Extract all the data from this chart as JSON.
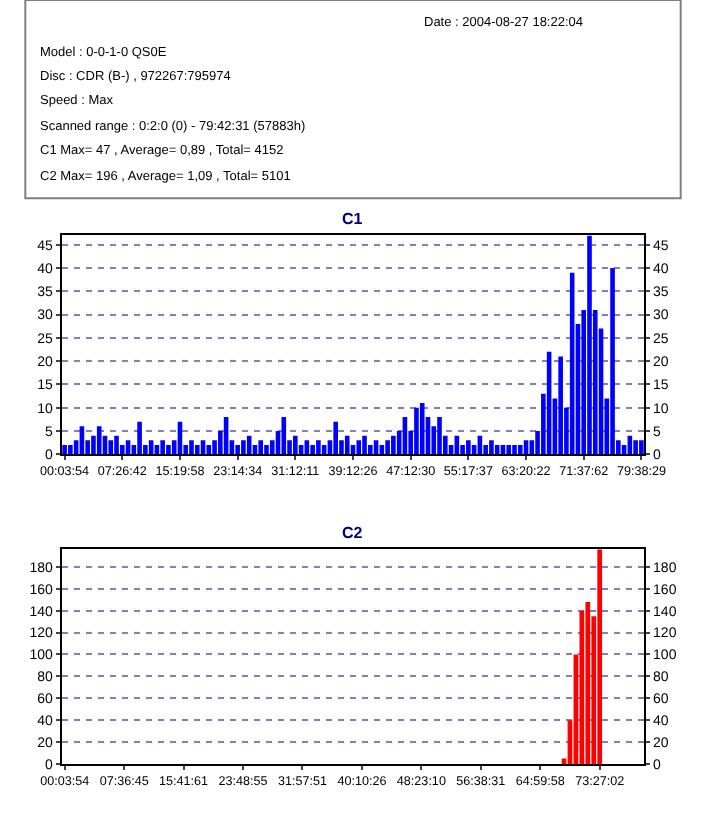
{
  "chart_data": [
    {
      "type": "other",
      "annotations": [
        "Date : 2004-08-27 18:22:04",
        "Model : 0-0-1-0 QS0E",
        "Disc : CDR (B-) , 972267:795974",
        "Speed : Max",
        "Scanned range : 0:2:0 (0) - 79:42:31 (57883h)",
        "C1 Max= 47 , Average= 0,89 , Total= 4152",
        "C2 Max= 196 , Average= 1,09 , Total= 5101"
      ]
    },
    {
      "type": "bar",
      "title": "C1",
      "grid": "y",
      "line_style": "dotted",
      "ylim": [
        0,
        47
      ],
      "y2lim": [
        0,
        47
      ],
      "categories": [
        "00:03:54",
        null,
        null,
        null,
        null,
        null,
        null,
        null,
        null,
        null,
        "07:26:42",
        null,
        null,
        null,
        null,
        null,
        null,
        null,
        null,
        null,
        "15:19:58",
        null,
        null,
        null,
        null,
        null,
        null,
        null,
        null,
        null,
        "23:14:34",
        null,
        null,
        null,
        null,
        null,
        null,
        null,
        null,
        null,
        "31:12:11",
        null,
        null,
        null,
        null,
        null,
        null,
        null,
        null,
        null,
        "39:12:26",
        null,
        null,
        null,
        null,
        null,
        null,
        null,
        null,
        null,
        "47:12:30",
        null,
        null,
        null,
        null,
        null,
        null,
        null,
        null,
        null,
        "55:17:37",
        null,
        null,
        null,
        null,
        null,
        null,
        null,
        null,
        null,
        "63:20:22",
        null,
        null,
        null,
        null,
        null,
        null,
        null,
        null,
        null,
        "71:37:62",
        null,
        null,
        null,
        null,
        null,
        null,
        null,
        null,
        null,
        "79:38:29"
      ],
      "yticks": [
        0,
        5,
        10,
        15,
        20,
        25,
        30,
        35,
        40,
        45
      ],
      "y2ticks": [
        0,
        5,
        10,
        15,
        20,
        25,
        30,
        35,
        40,
        45
      ],
      "series": [
        {
          "color": "#0000ff",
          "values": [
            2,
            2,
            3,
            6,
            3,
            4,
            6,
            4,
            3,
            4,
            2,
            3,
            2,
            7,
            2,
            3,
            2,
            3,
            2,
            3,
            7,
            2,
            3,
            2,
            3,
            2,
            3,
            5,
            8,
            3,
            2,
            3,
            4,
            2,
            3,
            2,
            3,
            5,
            8,
            3,
            4,
            2,
            3,
            2,
            3,
            2,
            3,
            7,
            3,
            4,
            2,
            3,
            4,
            2,
            3,
            2,
            3,
            4,
            5,
            8,
            5,
            10,
            11,
            8,
            6,
            8,
            4,
            2,
            4,
            2,
            3,
            2,
            4,
            2,
            3,
            2,
            2,
            2,
            2,
            2,
            3,
            3,
            5,
            13,
            22,
            12,
            21,
            10,
            39,
            28,
            31,
            47,
            31,
            27,
            12,
            40,
            3,
            2,
            4,
            3,
            3
          ]
        }
      ]
    },
    {
      "type": "bar",
      "title": "C2",
      "grid": "y",
      "line_style": "dotted",
      "ylim": [
        0,
        196
      ],
      "y2lim": [
        0,
        196
      ],
      "categories": [
        "00:03:54",
        null,
        null,
        null,
        null,
        null,
        null,
        null,
        null,
        null,
        "07:36:45",
        null,
        null,
        null,
        null,
        null,
        null,
        null,
        null,
        null,
        "15:41:61",
        null,
        null,
        null,
        null,
        null,
        null,
        null,
        null,
        null,
        "23:48:55",
        null,
        null,
        null,
        null,
        null,
        null,
        null,
        null,
        null,
        "31:57:51",
        null,
        null,
        null,
        null,
        null,
        null,
        null,
        null,
        null,
        "40:10:26",
        null,
        null,
        null,
        null,
        null,
        null,
        null,
        null,
        null,
        "48:23:10",
        null,
        null,
        null,
        null,
        null,
        null,
        null,
        null,
        null,
        "56:38:31",
        null,
        null,
        null,
        null,
        null,
        null,
        null,
        null,
        null,
        "64:59:58",
        null,
        null,
        null,
        null,
        null,
        null,
        null,
        null,
        null,
        "73:27:02",
        null,
        null,
        null,
        null,
        null,
        null,
        null
      ],
      "yticks": [
        0,
        20,
        40,
        60,
        80,
        100,
        120,
        140,
        160,
        180
      ],
      "y2ticks": [
        0,
        20,
        40,
        60,
        80,
        100,
        120,
        140,
        160,
        180
      ],
      "series": [
        {
          "color": "#ff0000",
          "values": [
            0,
            0,
            0,
            0,
            0,
            0,
            0,
            0,
            0,
            0,
            0,
            0,
            0,
            0,
            0,
            0,
            0,
            0,
            0,
            0,
            0,
            0,
            0,
            0,
            0,
            0,
            0,
            0,
            0,
            0,
            0,
            0,
            0,
            0,
            0,
            0,
            0,
            0,
            0,
            0,
            0,
            0,
            0,
            0,
            0,
            0,
            0,
            0,
            0,
            0,
            0,
            0,
            0,
            0,
            0,
            0,
            0,
            0,
            0,
            0,
            0,
            0,
            0,
            0,
            0,
            0,
            0,
            0,
            0,
            0,
            0,
            0,
            0,
            0,
            0,
            0,
            0,
            0,
            0,
            0,
            0,
            0,
            0,
            0,
            5,
            40,
            100,
            140,
            148,
            135,
            196,
            0,
            0,
            0,
            0,
            0,
            0,
            0
          ]
        }
      ]
    }
  ]
}
